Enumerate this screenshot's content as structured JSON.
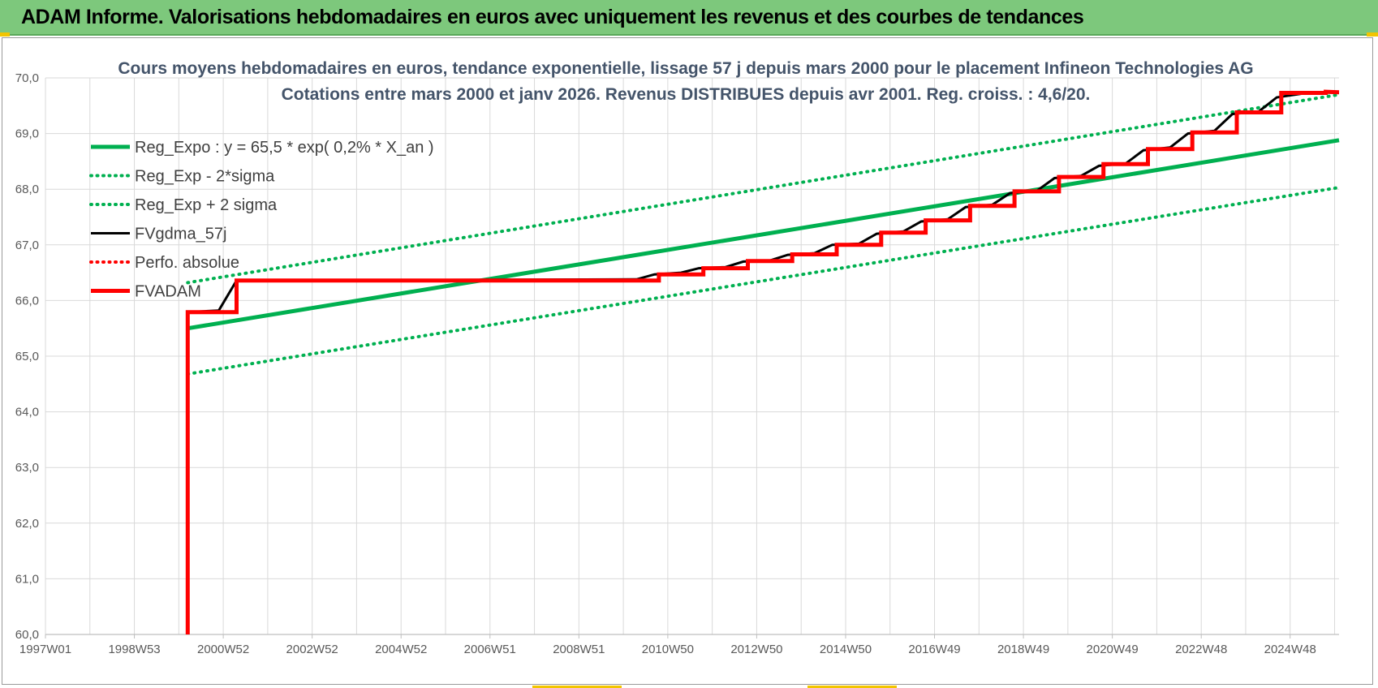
{
  "header": {
    "title": "ADAM Informe. Valorisations hebdomadaires en euros avec uniquement les revenus et des courbes de tendances"
  },
  "colors": {
    "banner": "#7dc87c",
    "regression": "#00b050",
    "fvgdma": "#000000",
    "fvadam": "#ff0000",
    "perfo": "#ff0000",
    "title_text": "#44546a"
  },
  "chart_data": {
    "type": "line",
    "title": "Cours moyens hebdomadaires en euros, tendance exponentielle, lissage 57 j depuis mars 2000 pour le placement Infineon Technologies AG",
    "subtitle": "Cotations entre mars 2000 et janv 2026. Revenus DISTRIBUES depuis avr 2001. Reg. croiss. : 4,6/20.",
    "xlabel": "",
    "ylabel": "",
    "ylim": [
      60,
      70
    ],
    "xlim": [
      1997.0,
      2026.1
    ],
    "y_ticks": [
      "60,0",
      "61,0",
      "62,0",
      "63,0",
      "64,0",
      "65,0",
      "66,0",
      "67,0",
      "68,0",
      "69,0",
      "70,0"
    ],
    "x_ticks": [
      {
        "label": "1997W01",
        "x": 1997.0
      },
      {
        "label": "1998W53",
        "x": 1999.0
      },
      {
        "label": "2000W52",
        "x": 2001.0
      },
      {
        "label": "2002W52",
        "x": 2003.0
      },
      {
        "label": "2004W52",
        "x": 2005.0
      },
      {
        "label": "2006W51",
        "x": 2007.0
      },
      {
        "label": "2008W51",
        "x": 2009.0
      },
      {
        "label": "2010W50",
        "x": 2011.0
      },
      {
        "label": "2012W50",
        "x": 2013.0
      },
      {
        "label": "2014W50",
        "x": 2015.0
      },
      {
        "label": "2016W49",
        "x": 2017.0
      },
      {
        "label": "2018W49",
        "x": 2019.0
      },
      {
        "label": "2020W49",
        "x": 2021.0
      },
      {
        "label": "2022W48",
        "x": 2023.0
      },
      {
        "label": "2024W48",
        "x": 2025.0
      }
    ],
    "grid": true,
    "legend_position": "top-left",
    "series": [
      {
        "name": "Reg_Expo : y = 65,5 * exp( 0,2% *  X_an )",
        "style": "solid",
        "color": "#00b050",
        "x": [
          2000.2,
          2026.1
        ],
        "y": [
          65.5,
          68.88
        ]
      },
      {
        "name": "Reg_Exp - 2*sigma",
        "style": "dotted",
        "color": "#00b050",
        "x": [
          2000.2,
          2026.1
        ],
        "y": [
          64.68,
          68.03
        ]
      },
      {
        "name": "Reg_Exp + 2 sigma",
        "style": "dotted",
        "color": "#00b050",
        "x": [
          2000.2,
          2026.1
        ],
        "y": [
          66.32,
          69.7
        ]
      },
      {
        "name": "FVgdma_57j",
        "style": "solid-thin",
        "color": "#000000",
        "x": [
          2000.2,
          2000.9,
          2001.3,
          2010.3,
          2010.7,
          2011.3,
          2011.7,
          2012.3,
          2012.7,
          2013.3,
          2013.7,
          2014.3,
          2014.7,
          2015.3,
          2015.7,
          2016.3,
          2016.7,
          2017.3,
          2017.7,
          2018.3,
          2018.7,
          2019.3,
          2019.7,
          2020.3,
          2020.7,
          2021.3,
          2021.7,
          2022.3,
          2022.7,
          2023.3,
          2023.7,
          2024.3,
          2024.7,
          2025.3,
          2025.7,
          2026.1
        ],
        "y": [
          65.79,
          65.82,
          66.36,
          66.38,
          66.47,
          66.5,
          66.58,
          66.6,
          66.7,
          66.72,
          66.82,
          66.85,
          67.0,
          67.02,
          67.2,
          67.24,
          67.42,
          67.46,
          67.68,
          67.72,
          67.93,
          67.97,
          68.2,
          68.24,
          68.42,
          68.46,
          68.7,
          68.75,
          69.0,
          69.05,
          69.35,
          69.4,
          69.65,
          69.72,
          69.74,
          69.73
        ]
      },
      {
        "name": "Perfo. absolue",
        "style": "dotted",
        "color": "#ff0000",
        "x": [],
        "y": []
      },
      {
        "name": "FVADAM",
        "style": "solid-thick",
        "color": "#ff0000",
        "x": [
          2000.2,
          2000.2,
          2001.3,
          2001.3,
          2010.8,
          2010.8,
          2011.8,
          2011.8,
          2012.8,
          2012.8,
          2013.8,
          2013.8,
          2014.8,
          2014.8,
          2015.8,
          2015.8,
          2016.8,
          2016.8,
          2017.8,
          2017.8,
          2018.8,
          2018.8,
          2019.8,
          2019.8,
          2020.8,
          2020.8,
          2021.8,
          2021.8,
          2022.8,
          2022.8,
          2023.8,
          2023.8,
          2024.8,
          2024.8,
          2025.8,
          2025.8,
          2026.1
        ],
        "y": [
          60.0,
          65.79,
          65.79,
          66.36,
          66.36,
          66.47,
          66.47,
          66.58,
          66.58,
          66.71,
          66.71,
          66.83,
          66.83,
          67.0,
          67.0,
          67.22,
          67.22,
          67.44,
          67.44,
          67.7,
          67.7,
          67.96,
          67.96,
          68.22,
          68.22,
          68.45,
          68.45,
          68.72,
          68.72,
          69.02,
          69.02,
          69.38,
          69.38,
          69.73,
          69.73,
          69.75,
          69.74
        ]
      }
    ]
  }
}
